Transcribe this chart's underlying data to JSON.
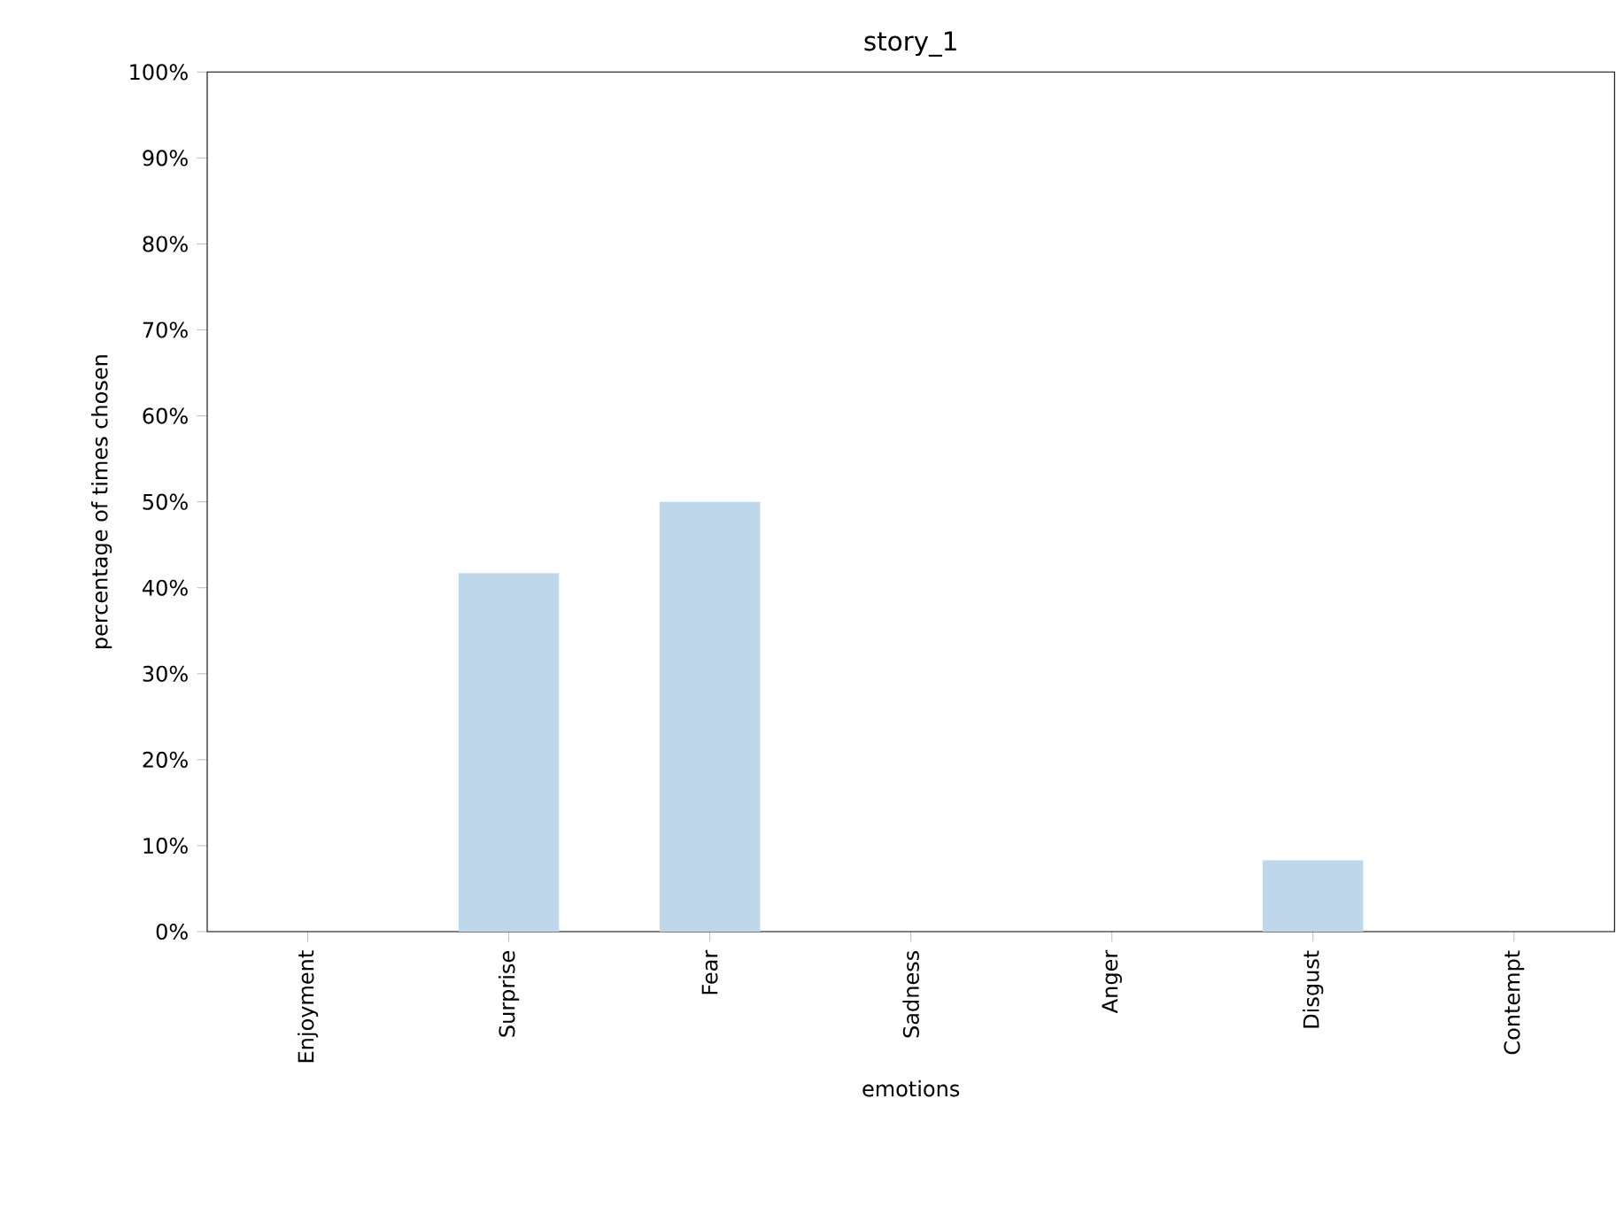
{
  "chart_data": {
    "type": "bar",
    "title": "story_1",
    "xlabel": "emotions",
    "ylabel": "percentage of times chosen",
    "categories": [
      "Enjoyment",
      "Surprise",
      "Fear",
      "Sadness",
      "Anger",
      "Disgust",
      "Contempt"
    ],
    "values": [
      0,
      41.7,
      50,
      0,
      0,
      8.3,
      0
    ],
    "color": "#bfd7ea",
    "ylim": [
      0,
      100
    ],
    "yticks": [
      {
        "value": 0,
        "label": "0%"
      },
      {
        "value": 10,
        "label": "10%"
      },
      {
        "value": 20,
        "label": "20%"
      },
      {
        "value": 30,
        "label": "30%"
      },
      {
        "value": 40,
        "label": "40%"
      },
      {
        "value": 50,
        "label": "50%"
      },
      {
        "value": 60,
        "label": "60%"
      },
      {
        "value": 70,
        "label": "70%"
      },
      {
        "value": 80,
        "label": "80%"
      },
      {
        "value": 90,
        "label": "90%"
      },
      {
        "value": 100,
        "label": "100%"
      }
    ],
    "grid": false
  }
}
